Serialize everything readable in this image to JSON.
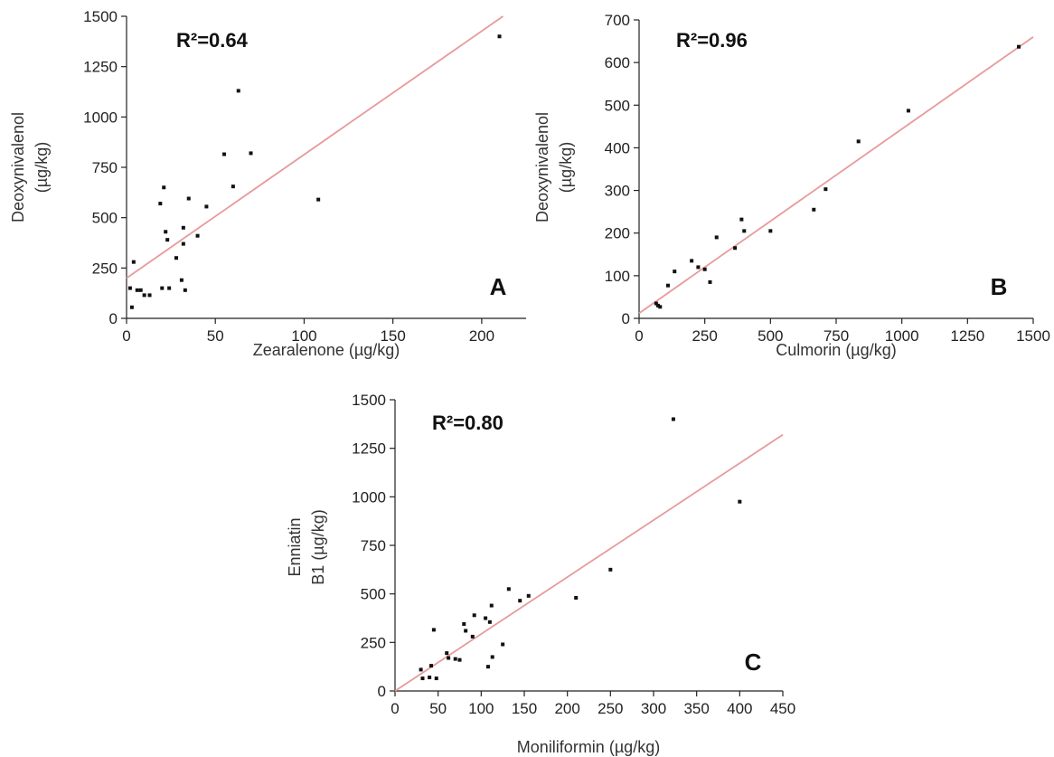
{
  "chart_data": [
    {
      "id": "A",
      "type": "scatter",
      "panel_letter": "A",
      "r2_label": "R²=0.64",
      "xlabel": "Zearalenone (µg/kg)",
      "ylabel": [
        "Deoxynivalenol",
        "(µg/kg)"
      ],
      "xlim": [
        0,
        225
      ],
      "ylim": [
        0,
        1500
      ],
      "xticks": [
        0,
        50,
        100,
        150,
        200
      ],
      "yticks": [
        0,
        250,
        500,
        750,
        1000,
        1250,
        1500
      ],
      "fit_line": {
        "x": [
          0,
          212
        ],
        "y": [
          200,
          1500
        ]
      },
      "points": [
        {
          "x": 2,
          "y": 150
        },
        {
          "x": 3,
          "y": 55
        },
        {
          "x": 4,
          "y": 280
        },
        {
          "x": 6,
          "y": 140
        },
        {
          "x": 8,
          "y": 140
        },
        {
          "x": 10,
          "y": 115
        },
        {
          "x": 13,
          "y": 115
        },
        {
          "x": 19,
          "y": 570
        },
        {
          "x": 20,
          "y": 150
        },
        {
          "x": 21,
          "y": 650
        },
        {
          "x": 22,
          "y": 430
        },
        {
          "x": 23,
          "y": 390
        },
        {
          "x": 24,
          "y": 150
        },
        {
          "x": 28,
          "y": 300
        },
        {
          "x": 31,
          "y": 190
        },
        {
          "x": 32,
          "y": 450
        },
        {
          "x": 32,
          "y": 370
        },
        {
          "x": 33,
          "y": 140
        },
        {
          "x": 35,
          "y": 595
        },
        {
          "x": 40,
          "y": 410
        },
        {
          "x": 45,
          "y": 555
        },
        {
          "x": 55,
          "y": 815
        },
        {
          "x": 60,
          "y": 655
        },
        {
          "x": 63,
          "y": 1130
        },
        {
          "x": 70,
          "y": 820
        },
        {
          "x": 108,
          "y": 590
        },
        {
          "x": 210,
          "y": 1400
        }
      ]
    },
    {
      "id": "B",
      "type": "scatter",
      "panel_letter": "B",
      "r2_label": "R²=0.96",
      "xlabel": "Culmorin (µg/kg)",
      "ylabel": [
        "Deoxynivalenol",
        "(µg/kg)"
      ],
      "xlim": [
        0,
        1500
      ],
      "ylim": [
        0,
        700
      ],
      "xticks": [
        0,
        250,
        500,
        750,
        1000,
        1250,
        1500
      ],
      "yticks": [
        0,
        100,
        200,
        300,
        400,
        500,
        600,
        700
      ],
      "fit_line": {
        "x": [
          0,
          1500
        ],
        "y": [
          12,
          660
        ]
      },
      "points": [
        {
          "x": 65,
          "y": 35
        },
        {
          "x": 72,
          "y": 30
        },
        {
          "x": 80,
          "y": 27
        },
        {
          "x": 110,
          "y": 77
        },
        {
          "x": 135,
          "y": 110
        },
        {
          "x": 200,
          "y": 135
        },
        {
          "x": 225,
          "y": 120
        },
        {
          "x": 250,
          "y": 115
        },
        {
          "x": 270,
          "y": 85
        },
        {
          "x": 295,
          "y": 190
        },
        {
          "x": 365,
          "y": 165
        },
        {
          "x": 390,
          "y": 232
        },
        {
          "x": 400,
          "y": 205
        },
        {
          "x": 500,
          "y": 205
        },
        {
          "x": 665,
          "y": 255
        },
        {
          "x": 710,
          "y": 303
        },
        {
          "x": 835,
          "y": 415
        },
        {
          "x": 1025,
          "y": 487
        },
        {
          "x": 1445,
          "y": 637
        }
      ]
    },
    {
      "id": "C",
      "type": "scatter",
      "panel_letter": "C",
      "r2_label": "R²=0.80",
      "xlabel": "Moniliformin (µg/kg)",
      "ylabel": [
        "Enniatin",
        "B1  (µg/kg)"
      ],
      "xlim": [
        0,
        450
      ],
      "ylim": [
        0,
        1500
      ],
      "xticks": [
        0,
        50,
        100,
        150,
        200,
        250,
        300,
        350,
        400,
        450
      ],
      "yticks": [
        0,
        250,
        500,
        750,
        1000,
        1250,
        1500
      ],
      "fit_line": {
        "x": [
          0,
          450
        ],
        "y": [
          0,
          1320
        ]
      },
      "points": [
        {
          "x": 30,
          "y": 110
        },
        {
          "x": 32,
          "y": 65
        },
        {
          "x": 40,
          "y": 70
        },
        {
          "x": 42,
          "y": 130
        },
        {
          "x": 45,
          "y": 315
        },
        {
          "x": 48,
          "y": 65
        },
        {
          "x": 60,
          "y": 195
        },
        {
          "x": 62,
          "y": 170
        },
        {
          "x": 70,
          "y": 165
        },
        {
          "x": 75,
          "y": 160
        },
        {
          "x": 80,
          "y": 345
        },
        {
          "x": 82,
          "y": 310
        },
        {
          "x": 90,
          "y": 280
        },
        {
          "x": 92,
          "y": 390
        },
        {
          "x": 105,
          "y": 375
        },
        {
          "x": 108,
          "y": 125
        },
        {
          "x": 110,
          "y": 355
        },
        {
          "x": 112,
          "y": 440
        },
        {
          "x": 113,
          "y": 175
        },
        {
          "x": 125,
          "y": 240
        },
        {
          "x": 132,
          "y": 525
        },
        {
          "x": 145,
          "y": 465
        },
        {
          "x": 155,
          "y": 490
        },
        {
          "x": 210,
          "y": 480
        },
        {
          "x": 250,
          "y": 625
        },
        {
          "x": 323,
          "y": 1400
        },
        {
          "x": 400,
          "y": 975
        }
      ]
    }
  ]
}
